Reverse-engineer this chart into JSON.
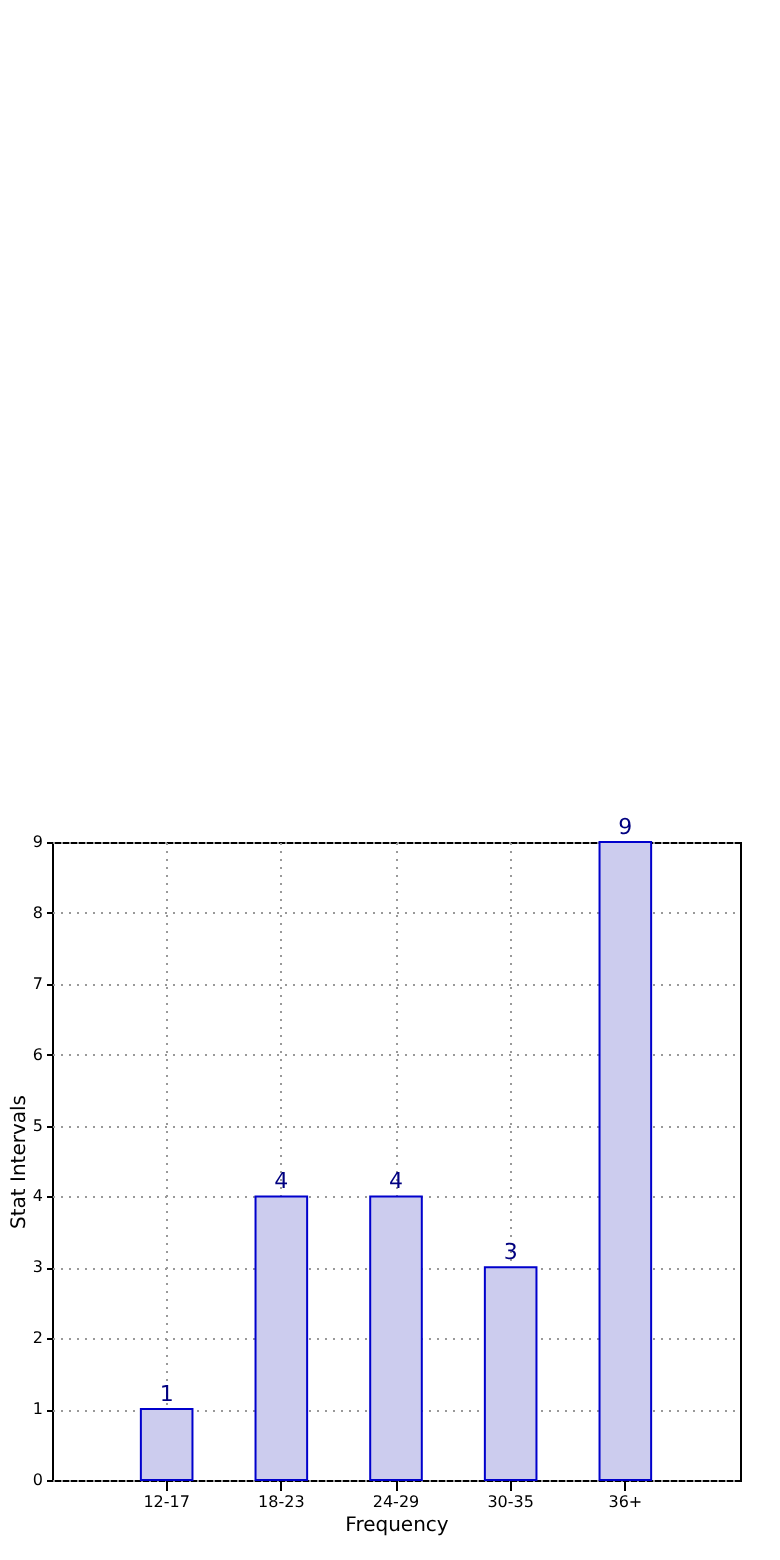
{
  "chart_data": {
    "type": "bar",
    "xlabel": "Frequency",
    "ylabel": "Stat Intervals",
    "categories": [
      "12-17",
      "18-23",
      "24-29",
      "30-35",
      "36+"
    ],
    "values": [
      1,
      4,
      4,
      3,
      9
    ],
    "color": "#ccccee",
    "ylim": [
      0,
      9
    ],
    "yticks": [
      0,
      1,
      2,
      3,
      4,
      5,
      6,
      7,
      8,
      9
    ],
    "grid": true,
    "data_labels": true
  }
}
